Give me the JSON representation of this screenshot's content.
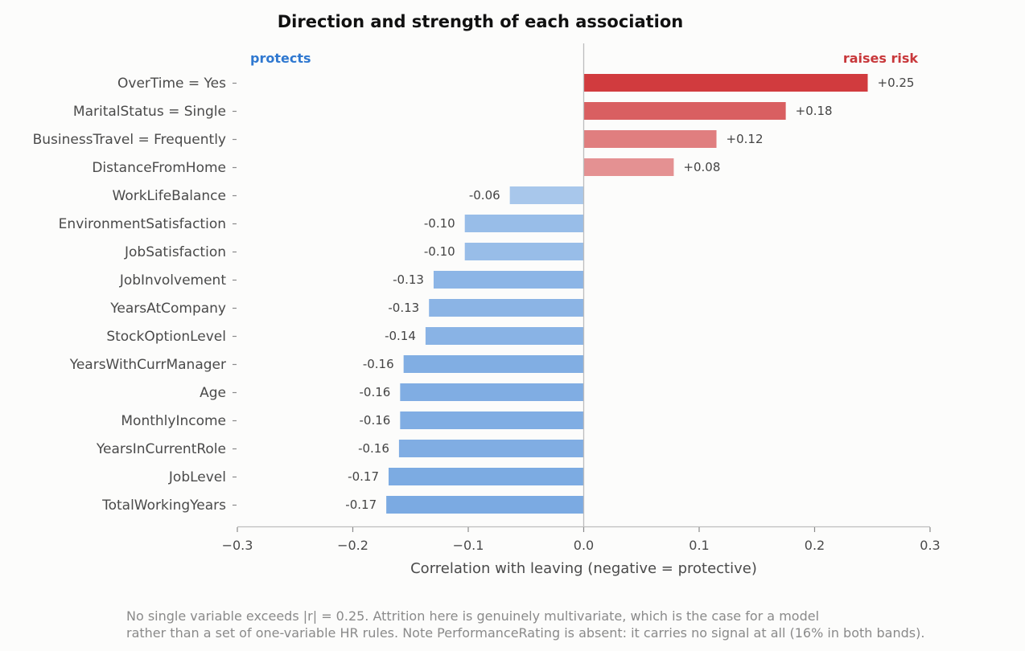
{
  "chart_data": {
    "type": "bar",
    "orientation": "horizontal",
    "title": "Direction and strength of each association",
    "xlabel": "Correlation with leaving  (negative = protective)",
    "ylabel": "",
    "xlim": [
      -0.3,
      0.3
    ],
    "xticks": [
      "−0.3",
      "−0.2",
      "−0.1",
      "0.0",
      "0.1",
      "0.2",
      "0.3"
    ],
    "grid": false,
    "annotations": {
      "left": "protects",
      "right": "raises risk"
    },
    "categories": [
      "OverTime = Yes",
      "MaritalStatus = Single",
      "BusinessTravel = Frequently",
      "DistanceFromHome",
      "WorkLifeBalance",
      "EnvironmentSatisfaction",
      "JobSatisfaction",
      "JobInvolvement",
      "YearsAtCompany",
      "StockOptionLevel",
      "YearsWithCurrManager",
      "Age",
      "MonthlyIncome",
      "YearsInCurrentRole",
      "JobLevel",
      "TotalWorkingYears"
    ],
    "values": [
      0.246,
      0.175,
      0.115,
      0.078,
      -0.064,
      -0.103,
      -0.103,
      -0.13,
      -0.134,
      -0.137,
      -0.156,
      -0.159,
      -0.159,
      -0.16,
      -0.169,
      -0.171
    ],
    "value_labels": [
      "+0.25",
      "+0.18",
      "+0.12",
      "+0.08",
      "-0.06",
      "-0.10",
      "-0.10",
      "-0.13",
      "-0.13",
      "-0.14",
      "-0.16",
      "-0.16",
      "-0.16",
      "-0.16",
      "-0.17",
      "-0.17"
    ],
    "colors": {
      "positive": "#d13b3e",
      "negative": "#5b96dc",
      "positive_label": "#c8383b",
      "negative_label": "#2f78d0"
    }
  },
  "footnote": {
    "line1": "No single variable exceeds |r| = 0.25. Attrition here is genuinely multivariate, which is the case for a model",
    "line2": "rather than a set of one-variable HR rules. Note PerformanceRating is absent: it carries no signal at all (16% in both bands)."
  }
}
